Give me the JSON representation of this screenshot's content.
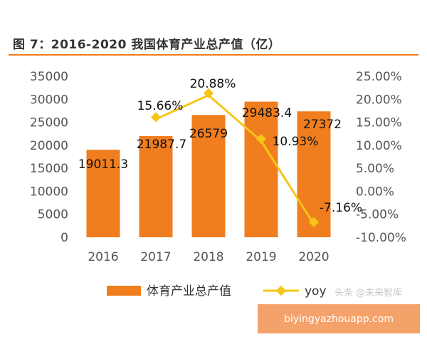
{
  "header": {
    "title": "图 7：2016-2020 我国体育产业总产值（亿）"
  },
  "watermark": "头条 @未来智库",
  "banner": {
    "url": "biyingyazhouapp.com"
  },
  "colors": {
    "bar": "#f07d1e",
    "line": "#f5c518",
    "accent": "#f07d1e"
  },
  "chart_data": {
    "type": "bar",
    "title": "图 7：2016-2020 我国体育产业总产值（亿）",
    "categories": [
      "2016",
      "2017",
      "2018",
      "2019",
      "2020"
    ],
    "series": [
      {
        "name": "体育产业总产值",
        "kind": "bar",
        "axis": "left",
        "values": [
          19011.3,
          21987.7,
          26579,
          29483.4,
          27372
        ],
        "labels": [
          "19011.3",
          "21987.7",
          "26579",
          "29483.4",
          "27372"
        ]
      },
      {
        "name": "yoy",
        "kind": "line",
        "axis": "right",
        "values": [
          null,
          15.66,
          20.88,
          10.93,
          -7.16
        ],
        "labels": [
          "",
          "15.66%",
          "20.88%",
          "10.93%",
          "-7.16%"
        ]
      }
    ],
    "y_left": {
      "min": 0,
      "max": 35000,
      "step": 5000,
      "ticks": [
        "0",
        "5000",
        "10000",
        "15000",
        "20000",
        "25000",
        "30000",
        "35000"
      ]
    },
    "y_right": {
      "min": -10,
      "max": 25,
      "step": 5,
      "ticks": [
        "-10.00%",
        "-5.00%",
        "0.00%",
        "5.00%",
        "10.00%",
        "15.00%",
        "20.00%",
        "25.00%"
      ]
    },
    "grid": false,
    "legend": {
      "position": "bottom",
      "items": [
        "体育产业总产值",
        "yoy"
      ]
    }
  }
}
